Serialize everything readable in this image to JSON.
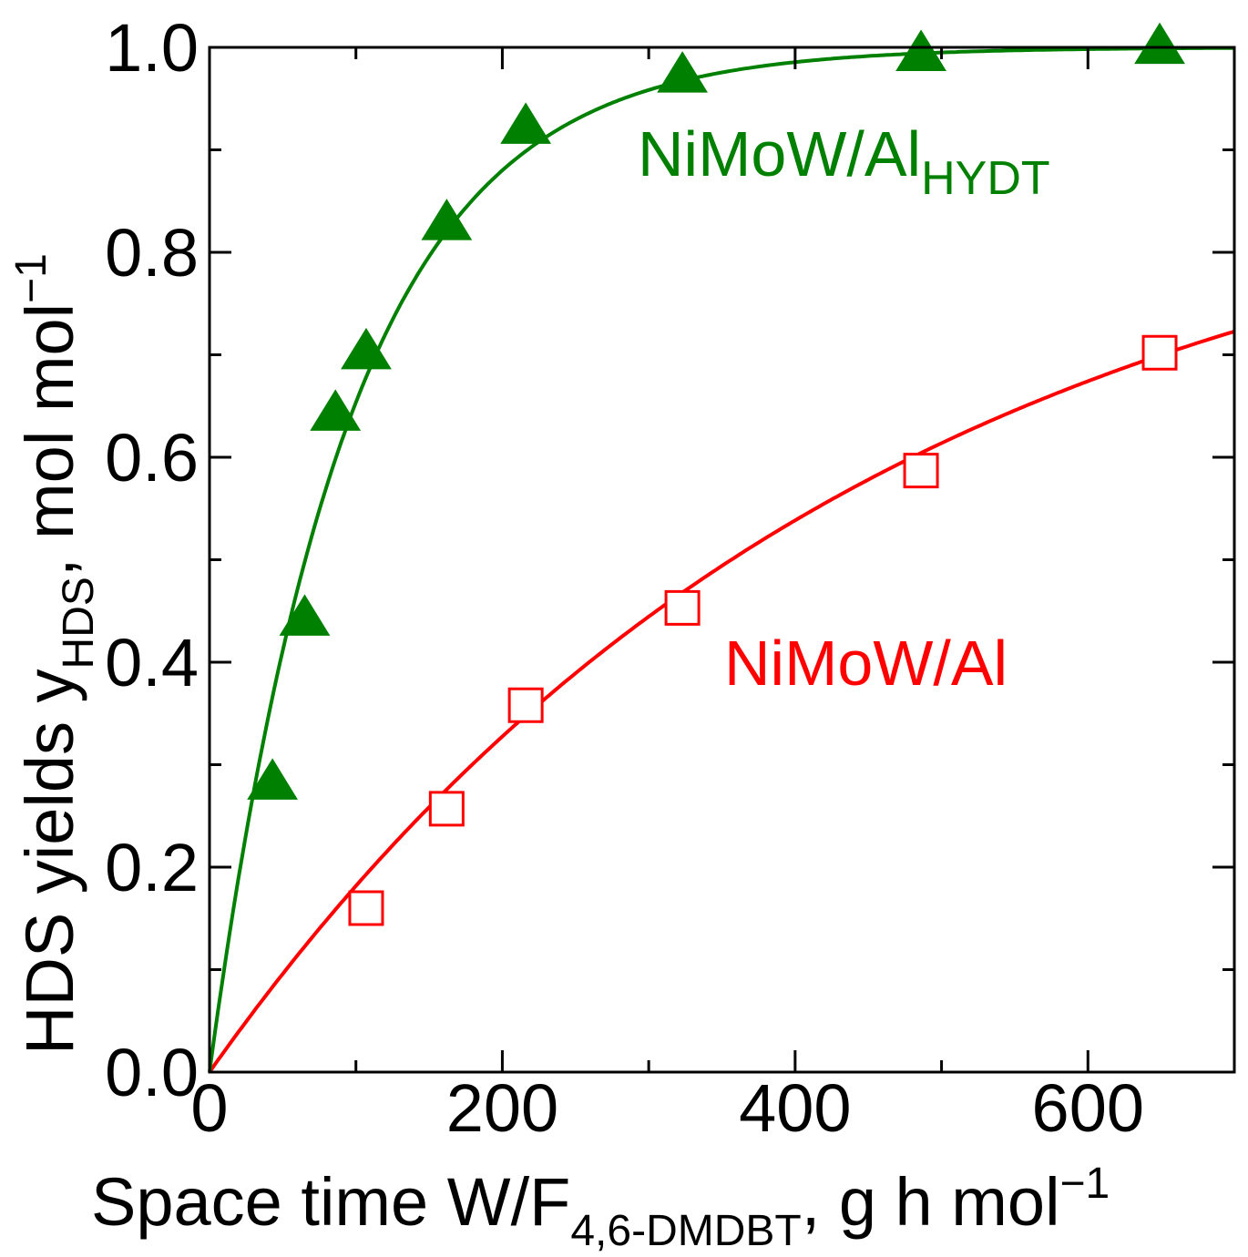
{
  "chart_data": {
    "type": "scatter",
    "title": "",
    "xlabel": {
      "main": "Space time W/F",
      "sub": "4,6-DMDBT",
      "rest": ", g h mol",
      "sup": "−1"
    },
    "ylabel": {
      "main": "HDS yields y",
      "sub": "HDS",
      "rest": ", mol mol",
      "sup": "−1"
    },
    "xlim": [
      0,
      700
    ],
    "ylim": [
      0,
      1.0
    ],
    "x_ticks": [
      0,
      200,
      400,
      600
    ],
    "x_tick_labels": [
      "0",
      "200",
      "400",
      "600"
    ],
    "x_minor_ticks": [
      100,
      300,
      500
    ],
    "y_ticks": [
      0.0,
      0.2,
      0.4,
      0.6,
      0.8,
      1.0
    ],
    "y_tick_labels": [
      "0.0",
      "0.2",
      "0.4",
      "0.6",
      "0.8",
      "1.0"
    ],
    "y_minor_ticks": [
      0.1,
      0.3,
      0.5,
      0.7,
      0.9
    ],
    "grid": false,
    "series": [
      {
        "name": "NiMoW/Al",
        "label_main": "NiMoW/Al",
        "label_sub": "",
        "color": "#ff0000",
        "marker": "open-square",
        "x": [
          107,
          162,
          216,
          323,
          486,
          649
        ],
        "y": [
          0.16,
          0.257,
          0.358,
          0.453,
          0.587,
          0.702
        ],
        "fit": {
          "model": "first-order",
          "a": 0.92,
          "k": 0.0022
        }
      },
      {
        "name": "NiMoW/Al HYDT",
        "label_main": "NiMoW/Al",
        "label_sub": "HYDT",
        "color": "#008000",
        "marker": "filled-triangle",
        "x": [
          43,
          65,
          86,
          107,
          162,
          216,
          323,
          486,
          649
        ],
        "y": [
          0.282,
          0.442,
          0.642,
          0.702,
          0.828,
          0.922,
          0.972,
          0.993,
          1.0
        ],
        "fit": {
          "model": "first-order",
          "a": 1.0,
          "k": 0.0106
        }
      }
    ]
  }
}
